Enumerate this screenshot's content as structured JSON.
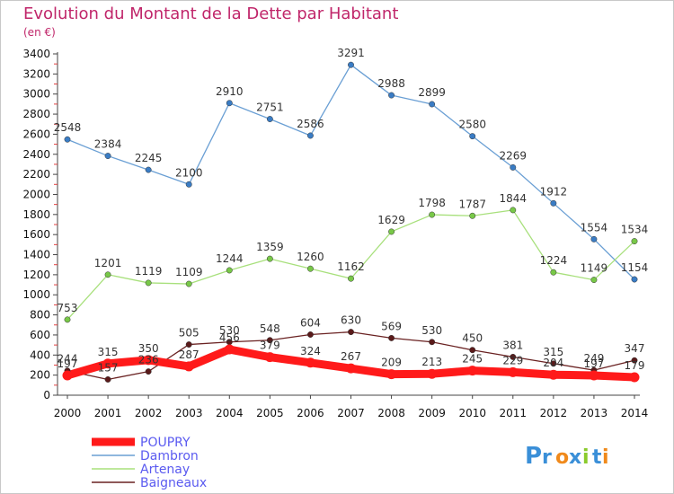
{
  "header": {
    "title": "Evolution du Montant de la Dette par Habitant",
    "unit": "(en €)"
  },
  "logo": {
    "text": "Proxiti"
  },
  "chart_data": {
    "type": "line",
    "title": "Evolution du Montant de la Dette par Habitant",
    "subtitle": "(en €)",
    "xlabel": "",
    "ylabel": "",
    "x": [
      2000,
      2001,
      2002,
      2003,
      2004,
      2005,
      2006,
      2007,
      2008,
      2009,
      2010,
      2011,
      2012,
      2013,
      2014
    ],
    "ylim": [
      0,
      3400
    ],
    "yticks": [
      0,
      200,
      400,
      600,
      800,
      1000,
      1200,
      1400,
      1600,
      1800,
      2000,
      2200,
      2400,
      2600,
      2800,
      3000,
      3200,
      3400
    ],
    "grid": false,
    "legend": "bottom-left",
    "series": [
      {
        "name": "Dambron",
        "color": "#6a9fd4",
        "marker": "#3a7cc4",
        "values": [
          2548,
          2384,
          2245,
          2100,
          2910,
          2751,
          2586,
          3291,
          2988,
          2899,
          2580,
          2269,
          1912,
          1554,
          1154
        ]
      },
      {
        "name": "Artenay",
        "color": "#a8e07c",
        "marker": "#78c848",
        "values": [
          753,
          1201,
          1119,
          1109,
          1244,
          1359,
          1260,
          1162,
          1629,
          1798,
          1787,
          1844,
          1224,
          1149,
          1534
        ]
      },
      {
        "name": "Baigneaux",
        "color": "#6a2222",
        "marker": "#5a1a1a",
        "values": [
          244,
          157,
          236,
          505,
          530,
          548,
          604,
          630,
          569,
          530,
          450,
          381,
          315,
          249,
          347
        ]
      },
      {
        "name": "POUPRY",
        "color": "#ff1a1a",
        "marker": "#ff1a1a",
        "values": [
          197,
          315,
          350,
          287,
          456,
          379,
          324,
          267,
          209,
          213,
          245,
          229,
          204,
          197,
          179
        ]
      }
    ]
  }
}
